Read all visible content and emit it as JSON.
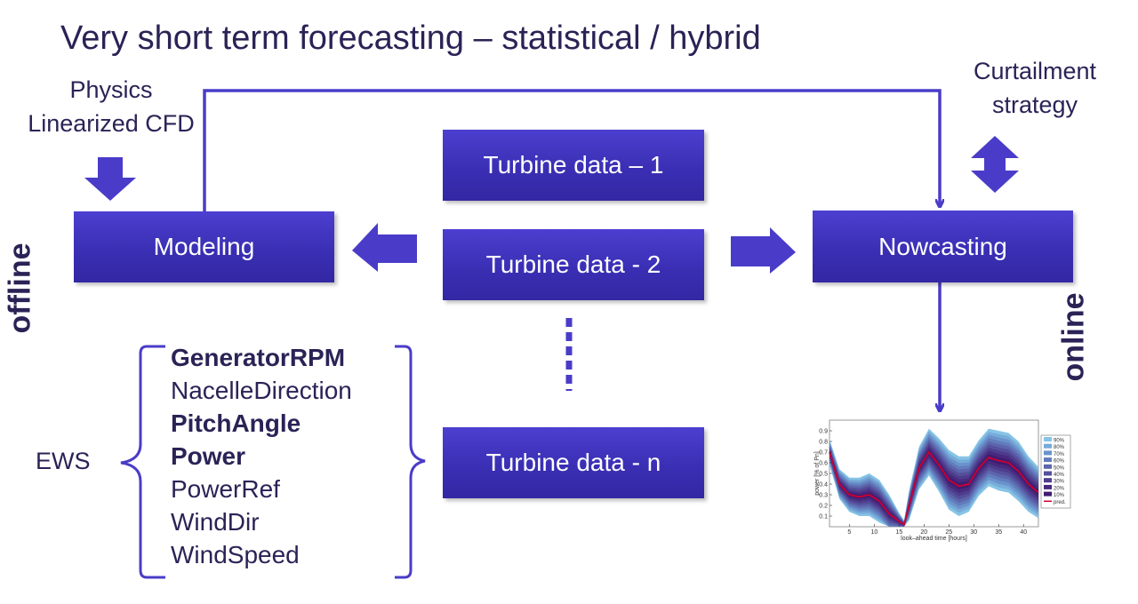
{
  "title": "Very short term forecasting – statistical / hybrid",
  "physics_label": [
    "Physics",
    "Linearized CFD"
  ],
  "curtailment_label": [
    "Curtailment",
    "strategy"
  ],
  "boxes": {
    "modeling": "Modeling",
    "nowcasting": "Nowcasting",
    "turbine1": "Turbine data – 1",
    "turbine2": "Turbine data - 2",
    "turbinen": "Turbine data - n"
  },
  "side_labels": {
    "offline": "offline",
    "online": "online"
  },
  "ews_label": "EWS",
  "signals": [
    {
      "text": "GeneratorRPM",
      "bold": true
    },
    {
      "text": "NacelleDirection",
      "bold": false
    },
    {
      "text": "PitchAngle",
      "bold": true
    },
    {
      "text": "Power",
      "bold": true
    },
    {
      "text": "PowerRef",
      "bold": false
    },
    {
      "text": "WindDir",
      "bold": false
    },
    {
      "text": "WindSpeed",
      "bold": false
    }
  ],
  "colors": {
    "box": "#3a2fb4",
    "arrow": "#4a3cc8",
    "text": "#2a2356",
    "pred": "#cc0033"
  },
  "chart_data": {
    "type": "area",
    "xlabel": "look–ahead time [hours]",
    "ylabel": "power [% of Pn]",
    "xlim": [
      1,
      43
    ],
    "ylim": [
      0,
      1
    ],
    "xticks": [
      5,
      10,
      15,
      20,
      25,
      30,
      35,
      40
    ],
    "yticks": [
      0.1,
      0.2,
      0.3,
      0.4,
      0.5,
      0.6,
      0.7,
      0.8,
      0.9
    ],
    "legend_position": "right",
    "legend": [
      "90%",
      "80%",
      "70%",
      "60%",
      "50%",
      "40%",
      "30%",
      "20%",
      "10%",
      "pred."
    ],
    "x": [
      1,
      3,
      5,
      7,
      9,
      11,
      13,
      15,
      16,
      17,
      19,
      21,
      23,
      25,
      27,
      29,
      31,
      33,
      35,
      37,
      39,
      41,
      43
    ],
    "pred": [
      0.7,
      0.4,
      0.3,
      0.28,
      0.3,
      0.24,
      0.12,
      0.05,
      0.02,
      0.2,
      0.55,
      0.7,
      0.58,
      0.44,
      0.38,
      0.4,
      0.55,
      0.65,
      0.62,
      0.6,
      0.52,
      0.4,
      0.32
    ],
    "band_halfwidth_90": [
      0.12,
      0.14,
      0.16,
      0.18,
      0.2,
      0.2,
      0.18,
      0.08,
      0.04,
      0.14,
      0.2,
      0.22,
      0.25,
      0.28,
      0.28,
      0.26,
      0.26,
      0.27,
      0.28,
      0.28,
      0.28,
      0.26,
      0.24
    ]
  }
}
